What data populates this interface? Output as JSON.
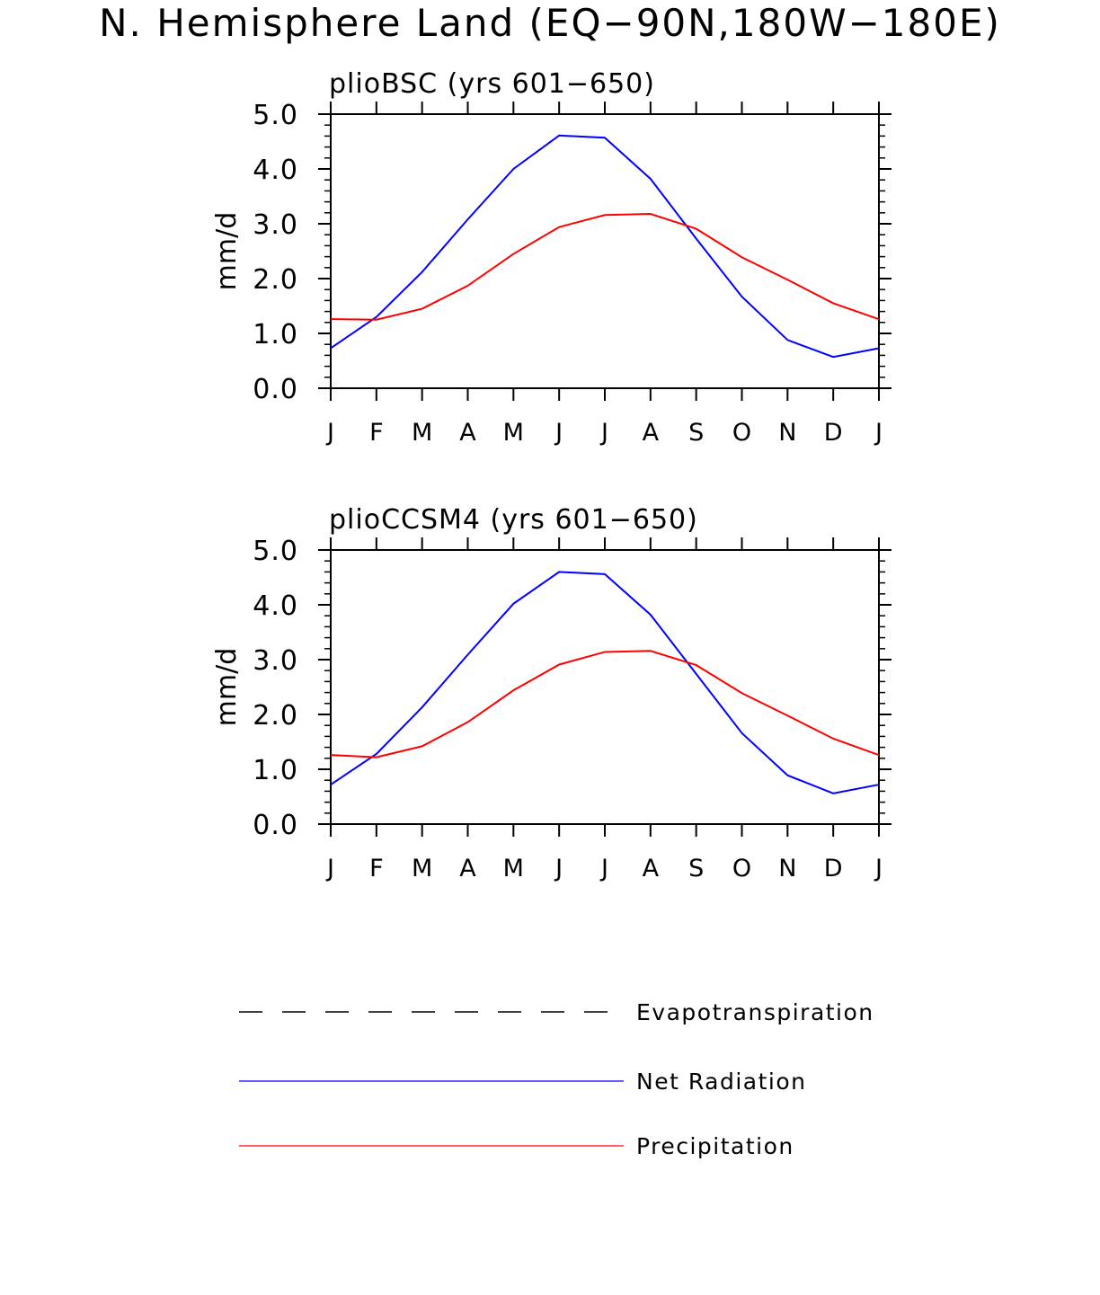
{
  "title": "N. Hemisphere Land (EQ−90N,180W−180E)",
  "legend": {
    "items": [
      {
        "label": "Evapotranspiration",
        "color": "#000000",
        "style": "dashed"
      },
      {
        "label": "Net Radiation",
        "color": "#0000ff",
        "style": "solid"
      },
      {
        "label": "Precipitation",
        "color": "#ff0000",
        "style": "solid"
      }
    ]
  },
  "chart_data": [
    {
      "type": "line",
      "title": "plioBSC (yrs 601−650)",
      "ylabel": "mm/d",
      "xlabel": "",
      "categories": [
        "J",
        "F",
        "M",
        "A",
        "M",
        "J",
        "J",
        "A",
        "S",
        "O",
        "N",
        "D",
        "J"
      ],
      "ylim": [
        0,
        5
      ],
      "yticks": [
        "0.0",
        "1.0",
        "2.0",
        "3.0",
        "4.0",
        "5.0"
      ],
      "series": [
        {
          "name": "Net Radiation",
          "color": "#0000ff",
          "values": [
            0.73,
            1.3,
            2.12,
            3.08,
            4.0,
            4.61,
            4.57,
            3.82,
            2.73,
            1.67,
            0.88,
            0.57,
            0.73
          ]
        },
        {
          "name": "Precipitation",
          "color": "#ff0000",
          "values": [
            1.26,
            1.25,
            1.45,
            1.87,
            2.45,
            2.94,
            3.16,
            3.18,
            2.91,
            2.39,
            1.98,
            1.55,
            1.26
          ]
        }
      ]
    },
    {
      "type": "line",
      "title": "plioCCSM4 (yrs 601−650)",
      "ylabel": "mm/d",
      "xlabel": "",
      "categories": [
        "J",
        "F",
        "M",
        "A",
        "M",
        "J",
        "J",
        "A",
        "S",
        "O",
        "N",
        "D",
        "J"
      ],
      "ylim": [
        0,
        5
      ],
      "yticks": [
        "0.0",
        "1.0",
        "2.0",
        "3.0",
        "4.0",
        "5.0"
      ],
      "series": [
        {
          "name": "Net Radiation",
          "color": "#0000ff",
          "values": [
            0.72,
            1.28,
            2.13,
            3.09,
            4.02,
            4.6,
            4.56,
            3.82,
            2.74,
            1.66,
            0.89,
            0.56,
            0.72
          ]
        },
        {
          "name": "Precipitation",
          "color": "#ff0000",
          "values": [
            1.26,
            1.22,
            1.42,
            1.86,
            2.44,
            2.91,
            3.14,
            3.16,
            2.9,
            2.39,
            1.98,
            1.56,
            1.26
          ]
        }
      ]
    }
  ]
}
